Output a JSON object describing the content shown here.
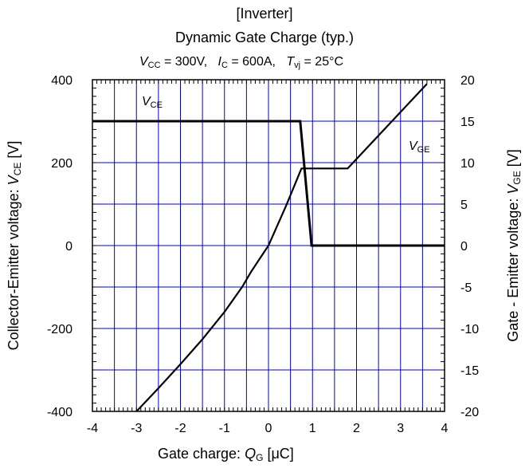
{
  "chart_data": {
    "type": "line",
    "title_lines": [
      "[Inverter]",
      "Dynamic Gate Charge (typ.)"
    ],
    "conditions": {
      "vcc_sym": "V",
      "vcc_sub": "CC",
      "vcc_val": "= 300V,",
      "ic_sym": "I",
      "ic_sub": "C",
      "ic_val": "= 600A,",
      "tvj_sym": "T",
      "tvj_sub": "vj",
      "tvj_val": "= 25°C"
    },
    "xlabel": {
      "text": "Gate charge: ",
      "sym": "Q",
      "sub": "G",
      "unit": " [μC]"
    },
    "ylabel_left": {
      "text": "Collector-Emitter voltage: ",
      "sym": "V",
      "sub": "CE",
      "unit": " [V]"
    },
    "ylabel_right": {
      "text": "Gate - Emitter voltage: ",
      "sym": "V",
      "sub": "GE",
      "unit": " [V]"
    },
    "xlim": [
      -4,
      4
    ],
    "ylim_left": [
      -400,
      400
    ],
    "ylim_right": [
      -20,
      20
    ],
    "x_ticks": [
      "-4",
      "-3",
      "-2",
      "-1",
      "0",
      "1",
      "2",
      "3",
      "4"
    ],
    "y_left_ticks": [
      "400",
      "200",
      "0",
      "-200",
      "-400"
    ],
    "y_right_ticks": [
      "20",
      "15",
      "10",
      "5",
      "0",
      "-5",
      "-10",
      "-15",
      "-20"
    ],
    "grid": true,
    "series": [
      {
        "name": "V",
        "name_sub": "CE",
        "axis": "left",
        "x": [
          -4,
          0.72,
          0.98,
          1.0,
          4
        ],
        "y": [
          300,
          300,
          0,
          0,
          0
        ]
      },
      {
        "name": "V",
        "name_sub": "GE",
        "axis": "right",
        "x": [
          -3.0,
          -2.5,
          -2.0,
          -1.5,
          -1.0,
          -0.6,
          -0.4,
          -0.2,
          0,
          0.4,
          0.75,
          1.8,
          3.6
        ],
        "y": [
          -20,
          -17.2,
          -14.3,
          -11.3,
          -8.0,
          -5.0,
          -3.2,
          -1.6,
          0,
          4.8,
          9.3,
          9.3,
          19.5
        ]
      }
    ],
    "colors": {
      "grid": "#0000cc",
      "line": "#000000",
      "frame": "#000000"
    }
  }
}
